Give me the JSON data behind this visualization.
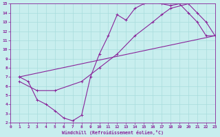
{
  "xlabel": "Windchill (Refroidissement éolien,°C)",
  "bg_color": "#c8eeee",
  "grid_color": "#a8dcdc",
  "line_color": "#882299",
  "xlim": [
    0,
    23
  ],
  "ylim": [
    2,
    15
  ],
  "xticks": [
    0,
    1,
    2,
    3,
    4,
    5,
    6,
    7,
    8,
    9,
    10,
    11,
    12,
    13,
    14,
    15,
    16,
    17,
    18,
    19,
    20,
    21,
    22,
    23
  ],
  "yticks": [
    2,
    3,
    4,
    5,
    6,
    7,
    8,
    9,
    10,
    11,
    12,
    13,
    14,
    15
  ],
  "curve1_x": [
    1,
    2,
    3,
    4,
    5,
    6,
    7,
    8,
    9,
    10,
    11,
    12,
    13,
    14,
    15,
    16,
    17,
    18,
    19,
    20,
    21,
    22,
    23
  ],
  "curve1_y": [
    7.0,
    6.5,
    4.5,
    4.0,
    3.3,
    2.5,
    2.2,
    2.8,
    7.0,
    9.5,
    11.5,
    13.8,
    13.2,
    14.5,
    15.0,
    15.2,
    15.0,
    14.8,
    15.0,
    14.0,
    13.0,
    11.5,
    11.5
  ],
  "curve2_x": [
    1,
    3,
    5,
    8,
    10,
    12,
    14,
    16,
    17,
    18,
    20,
    21,
    22,
    23
  ],
  "curve2_y": [
    6.5,
    5.5,
    5.5,
    6.5,
    8.0,
    9.5,
    11.5,
    13.0,
    13.8,
    14.5,
    15.0,
    14.0,
    13.0,
    11.5
  ],
  "curve3_x": [
    1,
    23
  ],
  "curve3_y": [
    7.0,
    11.5
  ]
}
